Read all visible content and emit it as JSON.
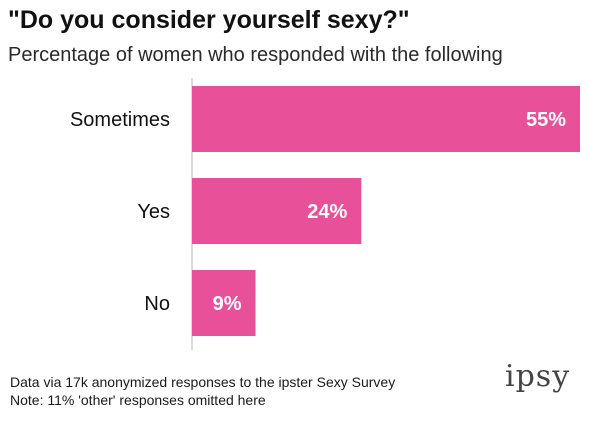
{
  "chart_data": {
    "type": "bar",
    "orientation": "horizontal",
    "title": "\"Do you consider yourself sexy?\"",
    "subtitle": "Percentage of women who responded with the following",
    "categories": [
      "Sometimes",
      "Yes",
      "No"
    ],
    "values": [
      55,
      24,
      9
    ],
    "data_labels": [
      "55%",
      "24%",
      "9%"
    ],
    "xlim": [
      0,
      55
    ],
    "grid": false,
    "bar_color": "#e8509a"
  },
  "footer": {
    "line1": "Data via 17k anonymized responses to the ipster Sexy Survey",
    "line2": "Note: 11% 'other' responses omitted here"
  },
  "logo": {
    "text": "ipsy"
  }
}
